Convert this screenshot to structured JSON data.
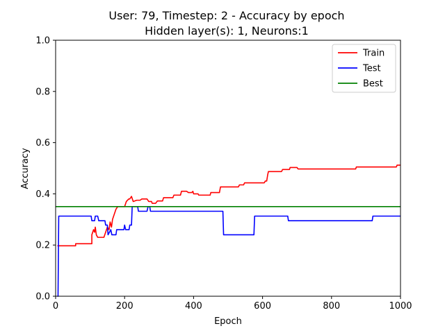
{
  "chart_data": {
    "type": "line",
    "title_line1": "User: 79, Timestep: 2 - Accuracy by epoch",
    "title_line2": "Hidden layer(s): 1, Neurons:1",
    "xlabel": "Epoch",
    "ylabel": "Accuracy",
    "xlim": [
      0,
      1000
    ],
    "ylim": [
      0,
      1
    ],
    "xticks": [
      0,
      200,
      400,
      600,
      800,
      1000
    ],
    "yticks": [
      0.0,
      0.2,
      0.4,
      0.6,
      0.8,
      1.0
    ],
    "xtick_labels": [
      "0",
      "200",
      "400",
      "600",
      "800",
      "1000"
    ],
    "ytick_labels": [
      "0.0",
      "0.2",
      "0.4",
      "0.6",
      "0.8",
      "1.0"
    ],
    "legend_position": "top-right",
    "series": [
      {
        "name": "Train",
        "color": "#ff0000",
        "points": [
          [
            5,
            0.197
          ],
          [
            58,
            0.197
          ],
          [
            58,
            0.205
          ],
          [
            105,
            0.205
          ],
          [
            105,
            0.24
          ],
          [
            110,
            0.26
          ],
          [
            113,
            0.25
          ],
          [
            115,
            0.27
          ],
          [
            118,
            0.24
          ],
          [
            122,
            0.23
          ],
          [
            140,
            0.23
          ],
          [
            145,
            0.25
          ],
          [
            150,
            0.27
          ],
          [
            155,
            0.26
          ],
          [
            158,
            0.29
          ],
          [
            162,
            0.27
          ],
          [
            165,
            0.3
          ],
          [
            170,
            0.32
          ],
          [
            175,
            0.34
          ],
          [
            180,
            0.35
          ],
          [
            200,
            0.35
          ],
          [
            205,
            0.37
          ],
          [
            212,
            0.38
          ],
          [
            215,
            0.38
          ],
          [
            220,
            0.39
          ],
          [
            225,
            0.37
          ],
          [
            235,
            0.375
          ],
          [
            245,
            0.375
          ],
          [
            250,
            0.38
          ],
          [
            265,
            0.38
          ],
          [
            270,
            0.37
          ],
          [
            278,
            0.37
          ],
          [
            280,
            0.363
          ],
          [
            290,
            0.363
          ],
          [
            295,
            0.372
          ],
          [
            310,
            0.372
          ],
          [
            313,
            0.385
          ],
          [
            340,
            0.385
          ],
          [
            343,
            0.395
          ],
          [
            362,
            0.395
          ],
          [
            365,
            0.41
          ],
          [
            380,
            0.41
          ],
          [
            385,
            0.405
          ],
          [
            395,
            0.405
          ],
          [
            398,
            0.41
          ],
          [
            400,
            0.4
          ],
          [
            413,
            0.4
          ],
          [
            415,
            0.395
          ],
          [
            448,
            0.395
          ],
          [
            450,
            0.405
          ],
          [
            475,
            0.405
          ],
          [
            478,
            0.427
          ],
          [
            530,
            0.427
          ],
          [
            533,
            0.435
          ],
          [
            545,
            0.435
          ],
          [
            548,
            0.443
          ],
          [
            605,
            0.443
          ],
          [
            608,
            0.45
          ],
          [
            612,
            0.45
          ],
          [
            615,
            0.475
          ],
          [
            617,
            0.487
          ],
          [
            655,
            0.487
          ],
          [
            658,
            0.495
          ],
          [
            678,
            0.495
          ],
          [
            680,
            0.503
          ],
          [
            700,
            0.503
          ],
          [
            703,
            0.497
          ],
          [
            870,
            0.497
          ],
          [
            872,
            0.505
          ],
          [
            988,
            0.505
          ],
          [
            990,
            0.512
          ],
          [
            1000,
            0.512
          ]
        ]
      },
      {
        "name": "Test",
        "color": "#0000ff",
        "points": [
          [
            5,
            0.0
          ],
          [
            7,
            0.0
          ],
          [
            9,
            0.313
          ],
          [
            103,
            0.313
          ],
          [
            105,
            0.295
          ],
          [
            113,
            0.295
          ],
          [
            115,
            0.313
          ],
          [
            122,
            0.313
          ],
          [
            125,
            0.295
          ],
          [
            143,
            0.295
          ],
          [
            145,
            0.278
          ],
          [
            150,
            0.278
          ],
          [
            152,
            0.24
          ],
          [
            160,
            0.26
          ],
          [
            163,
            0.24
          ],
          [
            175,
            0.24
          ],
          [
            177,
            0.26
          ],
          [
            198,
            0.26
          ],
          [
            200,
            0.278
          ],
          [
            203,
            0.26
          ],
          [
            213,
            0.26
          ],
          [
            215,
            0.278
          ],
          [
            220,
            0.278
          ],
          [
            222,
            0.35
          ],
          [
            238,
            0.35
          ],
          [
            240,
            0.332
          ],
          [
            265,
            0.332
          ],
          [
            268,
            0.35
          ],
          [
            273,
            0.35
          ],
          [
            275,
            0.332
          ],
          [
            485,
            0.332
          ],
          [
            487,
            0.24
          ],
          [
            575,
            0.24
          ],
          [
            577,
            0.313
          ],
          [
            673,
            0.313
          ],
          [
            675,
            0.295
          ],
          [
            918,
            0.295
          ],
          [
            920,
            0.313
          ],
          [
            1000,
            0.313
          ]
        ]
      },
      {
        "name": "Best",
        "color": "#008000",
        "points": [
          [
            0,
            0.35
          ],
          [
            1000,
            0.35
          ]
        ]
      }
    ]
  }
}
